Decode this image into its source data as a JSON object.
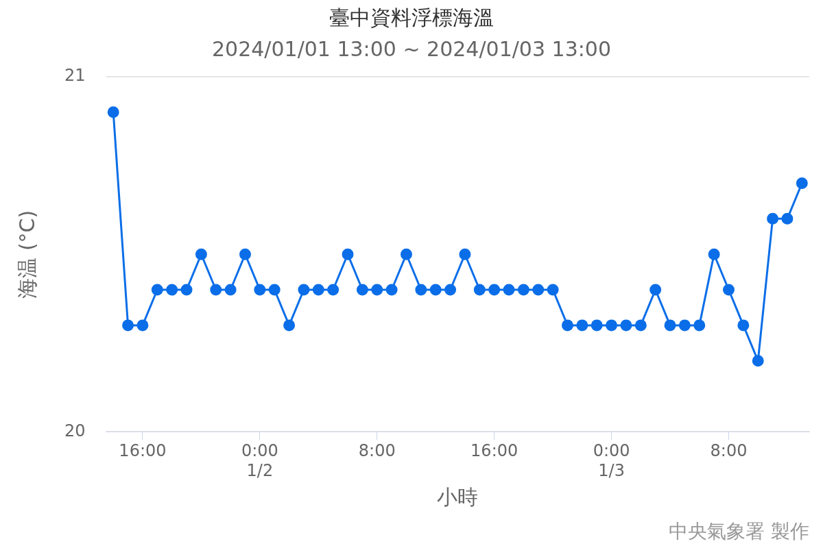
{
  "chart_data": {
    "type": "line",
    "title": "臺中資料浮標海溫",
    "subtitle": "2024/01/01 13:00 ~ 2024/01/03 13:00",
    "xlabel": "小時",
    "ylabel": "海温 (°C)",
    "annotations": [
      "中央氣象署 製作"
    ],
    "x": [
      "2024-01-01T14:00",
      "2024-01-01T15:00",
      "2024-01-01T16:00",
      "2024-01-01T17:00",
      "2024-01-01T18:00",
      "2024-01-01T19:00",
      "2024-01-01T20:00",
      "2024-01-01T21:00",
      "2024-01-01T22:00",
      "2024-01-01T23:00",
      "2024-01-02T00:00",
      "2024-01-02T01:00",
      "2024-01-02T02:00",
      "2024-01-02T03:00",
      "2024-01-02T04:00",
      "2024-01-02T05:00",
      "2024-01-02T06:00",
      "2024-01-02T07:00",
      "2024-01-02T08:00",
      "2024-01-02T09:00",
      "2024-01-02T10:00",
      "2024-01-02T11:00",
      "2024-01-02T12:00",
      "2024-01-02T13:00",
      "2024-01-02T14:00",
      "2024-01-02T15:00",
      "2024-01-02T16:00",
      "2024-01-02T17:00",
      "2024-01-02T18:00",
      "2024-01-02T19:00",
      "2024-01-02T20:00",
      "2024-01-02T21:00",
      "2024-01-02T22:00",
      "2024-01-02T23:00",
      "2024-01-03T00:00",
      "2024-01-03T01:00",
      "2024-01-03T02:00",
      "2024-01-03T03:00",
      "2024-01-03T04:00",
      "2024-01-03T05:00",
      "2024-01-03T06:00",
      "2024-01-03T07:00",
      "2024-01-03T08:00",
      "2024-01-03T09:00",
      "2024-01-03T10:00",
      "2024-01-03T11:00",
      "2024-01-03T12:00",
      "2024-01-03T13:00"
    ],
    "series": [
      {
        "color": "#0b6ee8",
        "values": [
          20.9,
          20.3,
          20.3,
          20.4,
          20.4,
          20.4,
          20.5,
          20.4,
          20.4,
          20.5,
          20.4,
          20.4,
          20.3,
          20.4,
          20.4,
          20.4,
          20.5,
          20.4,
          20.4,
          20.4,
          20.5,
          20.4,
          20.4,
          20.4,
          20.5,
          20.4,
          20.4,
          20.4,
          20.4,
          20.4,
          20.4,
          20.3,
          20.3,
          20.3,
          20.3,
          20.3,
          20.3,
          20.4,
          20.3,
          20.3,
          20.3,
          20.5,
          20.4,
          20.3,
          20.2,
          20.6,
          20.6,
          20.7
        ]
      }
    ],
    "xlim": [
      "2024-01-01T13:30",
      "2024-01-03T13:30"
    ],
    "xticks": [
      {
        "value": "2024-01-01T16:00",
        "label": "16:00"
      },
      {
        "value": "2024-01-02T00:00",
        "label": "0:00\n1/2"
      },
      {
        "value": "2024-01-02T08:00",
        "label": "8:00"
      },
      {
        "value": "2024-01-02T16:00",
        "label": "16:00"
      },
      {
        "value": "2024-01-03T00:00",
        "label": "0:00\n1/3"
      },
      {
        "value": "2024-01-03T08:00",
        "label": "8:00"
      }
    ],
    "ylim": [
      20,
      21
    ],
    "yticks": [
      20,
      21
    ],
    "grid": "y",
    "legend": false,
    "marker": "circle",
    "line_style": "solid"
  }
}
